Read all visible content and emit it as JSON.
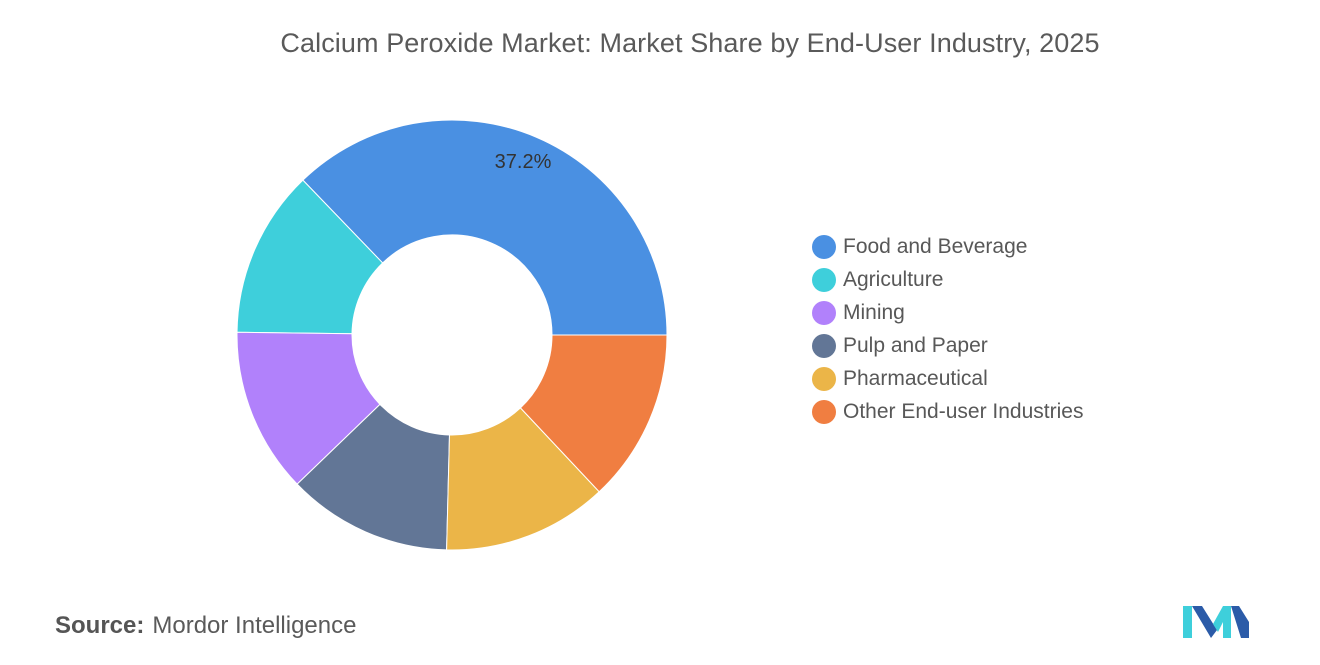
{
  "chart_data": {
    "type": "pie",
    "variant": "donut",
    "title": "Calcium Peroxide Market: Market Share by End-User Industry, 2025",
    "categories": [
      "Food and Beverage",
      "Agriculture",
      "Mining",
      "Pulp and Paper",
      "Pharmaceutical",
      "Other End-user Industries"
    ],
    "values": [
      37.2,
      12.6,
      12.4,
      12.4,
      12.4,
      13.0
    ],
    "colors": [
      "#4a90e2",
      "#3ecfdb",
      "#b181fb",
      "#627696",
      "#ebb548",
      "#f07e41"
    ],
    "data_labels": [
      "37.2%",
      "",
      "",
      "",
      "",
      ""
    ],
    "legend_position": "right"
  },
  "source": {
    "label": "Source:",
    "value": "Mordor Intelligence"
  },
  "logo": {
    "icon": "mordor-intelligence-logo",
    "colors": [
      "#2b5ba8",
      "#3ecfdb"
    ]
  }
}
